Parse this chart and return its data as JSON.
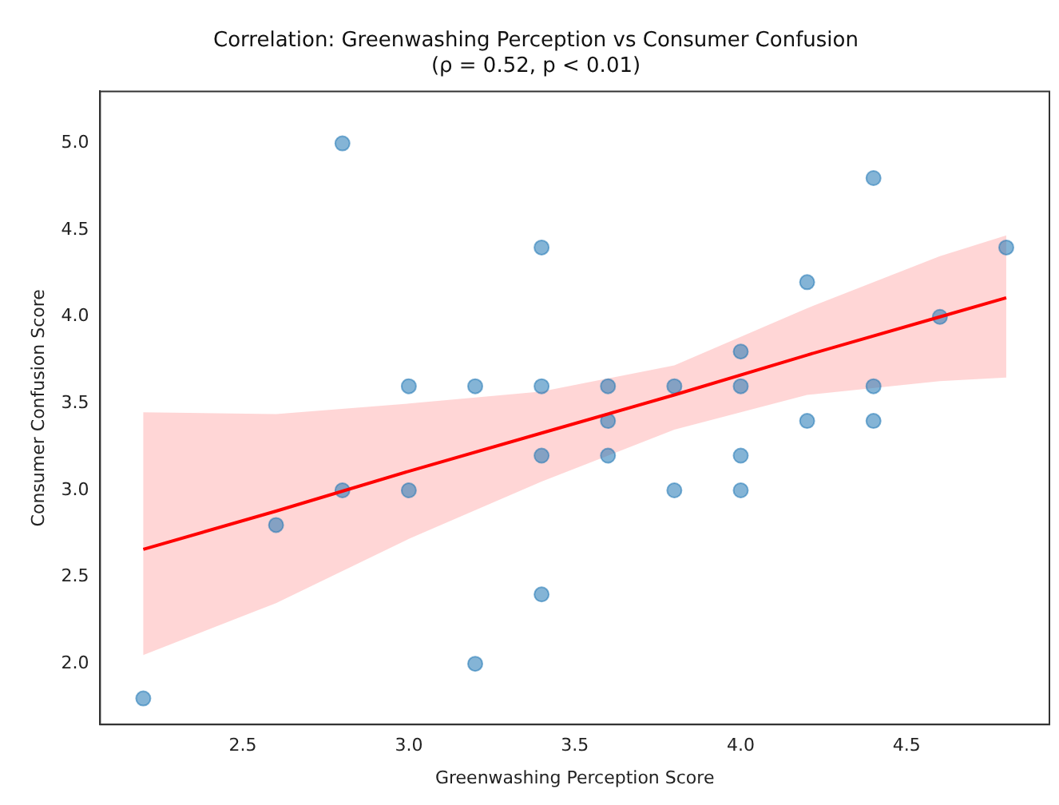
{
  "chart_data": {
    "type": "scatter",
    "title": "Correlation: Greenwashing Perception vs Consumer Confusion",
    "subtitle": "(ρ = 0.52, p < 0.01)",
    "xlabel": "Greenwashing Perception Score",
    "ylabel": "Consumer Confusion Score",
    "xlim": [
      2.07,
      4.93
    ],
    "xticks": [
      2.5,
      {
        "value": 3,
        "label": "3.0"
      },
      3.5,
      {
        "value": 4,
        "label": "4.0"
      },
      4.5
    ],
    "ylim": [
      1.65,
      5.3
    ],
    "yticks": [
      {
        "value": 2,
        "label": "2.0"
      },
      2.5,
      {
        "value": 3,
        "label": "3.0"
      },
      3.5,
      {
        "value": 4,
        "label": "4.0"
      },
      4.5,
      {
        "value": 5,
        "label": "5.0"
      }
    ],
    "grid": false,
    "legend": false,
    "series": [
      {
        "color": "#1f77b4",
        "marker": "circle",
        "x": [
          2.2,
          2.6,
          2.8,
          2.8,
          3.0,
          3.0,
          3.2,
          3.2,
          3.4,
          3.4,
          3.4,
          3.4,
          3.6,
          3.6,
          3.6,
          3.8,
          3.8,
          4.0,
          4.0,
          4.0,
          4.0,
          4.2,
          4.2,
          4.4,
          4.4,
          4.4,
          4.6,
          4.8
        ],
        "values": [
          1.8,
          2.8,
          3.0,
          5.0,
          3.6,
          3.0,
          3.6,
          2.0,
          4.4,
          3.6,
          3.2,
          2.4,
          3.6,
          3.4,
          3.2,
          3.6,
          3.0,
          3.8,
          3.6,
          3.2,
          3.0,
          4.2,
          3.4,
          4.8,
          3.6,
          3.4,
          4.0,
          4.4
        ]
      },
      {
        "type": "line",
        "color": "#ff0000",
        "line_style": "solid",
        "x": [
          2.2,
          2.6,
          3.0,
          3.4,
          3.8,
          4.2,
          4.6,
          4.8
        ],
        "values": [
          2.66,
          2.88,
          3.11,
          3.33,
          3.55,
          3.78,
          4.0,
          4.11
        ],
        "lower": [
          2.05,
          2.35,
          2.72,
          3.05,
          3.35,
          3.55,
          3.63,
          3.65
        ],
        "upper": [
          3.45,
          3.44,
          3.5,
          3.57,
          3.72,
          4.05,
          4.35,
          4.47
        ]
      }
    ]
  }
}
